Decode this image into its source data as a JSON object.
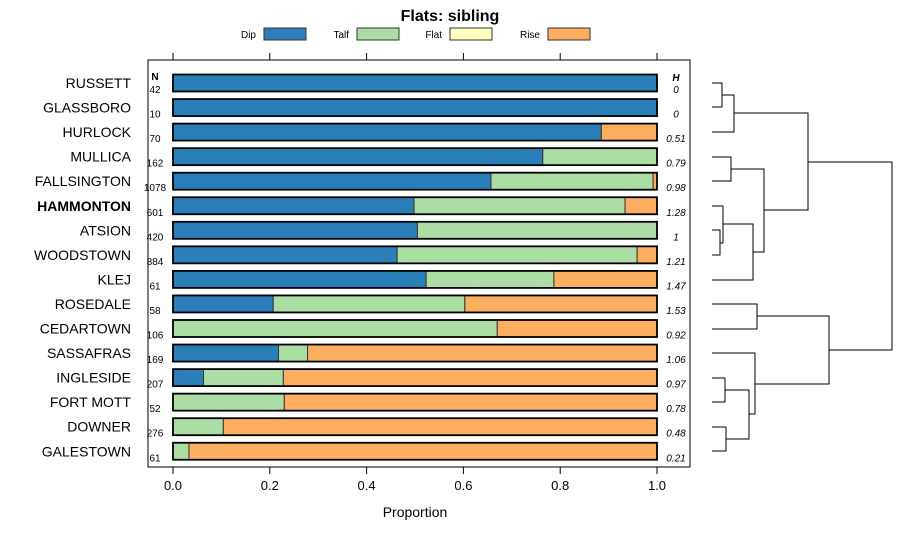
{
  "chart_data": {
    "type": "bar",
    "orientation": "horizontal",
    "stacked": true,
    "title": "Flats: sibling",
    "xlabel": "Proportion",
    "ylabel": "",
    "xlim": [
      0,
      1
    ],
    "xticks": [
      "0.0",
      "0.2",
      "0.4",
      "0.6",
      "0.8",
      "1.0"
    ],
    "legend_position": "top",
    "n_header": "N",
    "h_header": "H",
    "highlighted_category": "HAMMONTON",
    "series": [
      {
        "name": "Dip",
        "color": "#2b7fb8"
      },
      {
        "name": "Talf",
        "color": "#abdda4"
      },
      {
        "name": "Flat",
        "color": "#ffffbf"
      },
      {
        "name": "Rise",
        "color": "#fdae61"
      }
    ],
    "categories": [
      "RUSSETT",
      "GLASSBORO",
      "HURLOCK",
      "MULLICA",
      "FALLSINGTON",
      "HAMMONTON",
      "ATSION",
      "WOODSTOWN",
      "KLEJ",
      "ROSEDALE",
      "CEDARTOWN",
      "SASSAFRAS",
      "INGLESIDE",
      "FORT MOTT",
      "DOWNER",
      "GALESTOWN"
    ],
    "N": [
      "42",
      "10",
      "70",
      "162",
      "1078",
      "601",
      "420",
      "884",
      "61",
      "58",
      "106",
      "169",
      "207",
      "52",
      "276",
      "61"
    ],
    "H": [
      "0",
      "0",
      "0.51",
      "0.79",
      "0.98",
      "1.28",
      "1",
      "1.21",
      "1.47",
      "1.53",
      "0.92",
      "1.06",
      "0.97",
      "0.78",
      "0.48",
      "0.21"
    ],
    "values": [
      [
        1.0,
        0,
        0,
        0
      ],
      [
        1.0,
        0,
        0,
        0
      ],
      [
        0.885,
        0,
        0,
        0.115
      ],
      [
        0.764,
        0.236,
        0,
        0
      ],
      [
        0.657,
        0.335,
        0,
        0.008
      ],
      [
        0.498,
        0.436,
        0,
        0.066
      ],
      [
        0.505,
        0.495,
        0,
        0
      ],
      [
        0.463,
        0.496,
        0,
        0.041
      ],
      [
        0.523,
        0.264,
        0,
        0.213
      ],
      [
        0.207,
        0.396,
        0,
        0.397
      ],
      [
        0,
        0.67,
        0,
        0.33
      ],
      [
        0.218,
        0.06,
        0,
        0.722
      ],
      [
        0.063,
        0.165,
        0,
        0.772
      ],
      [
        0,
        0.23,
        0,
        0.77
      ],
      [
        0,
        0.104,
        0,
        0.896
      ],
      [
        0,
        0.033,
        0,
        0.967
      ]
    ]
  }
}
